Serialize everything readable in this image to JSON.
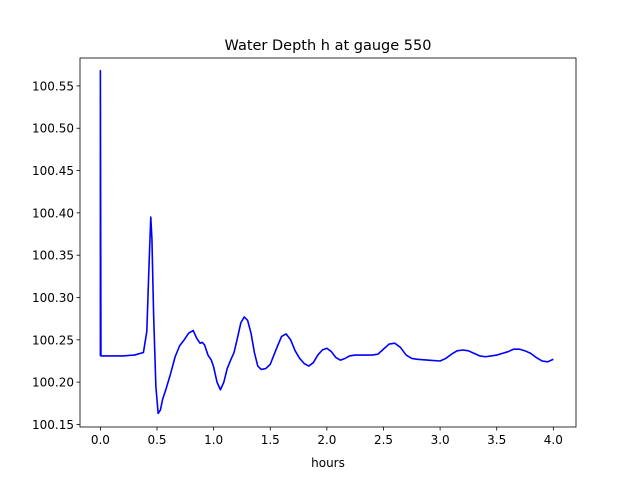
{
  "chart_data": {
    "type": "line",
    "title": "Water Depth h at gauge 550",
    "xlabel": "hours",
    "ylabel": "",
    "xlim": [
      -0.18,
      4.2
    ],
    "ylim": [
      100.147,
      100.583
    ],
    "grid": false,
    "xticks": [
      0.0,
      0.5,
      1.0,
      1.5,
      2.0,
      2.5,
      3.0,
      3.5,
      4.0
    ],
    "xtick_labels": [
      "0.0",
      "0.5",
      "1.0",
      "1.5",
      "2.0",
      "2.5",
      "3.0",
      "3.5",
      "4.0"
    ],
    "yticks": [
      100.15,
      100.2,
      100.25,
      100.3,
      100.35,
      100.4,
      100.45,
      100.5,
      100.55
    ],
    "ytick_labels": [
      "100.15",
      "100.20",
      "100.25",
      "100.30",
      "100.35",
      "100.40",
      "100.45",
      "100.50",
      "100.55"
    ],
    "series": [
      {
        "color": "#0000ff",
        "x": [
          0.0,
          0.0,
          0.005,
          0.1,
          0.2,
          0.3,
          0.38,
          0.41,
          0.43,
          0.445,
          0.455,
          0.47,
          0.49,
          0.51,
          0.53,
          0.55,
          0.58,
          0.62,
          0.66,
          0.7,
          0.74,
          0.78,
          0.82,
          0.85,
          0.88,
          0.9,
          0.92,
          0.95,
          0.98,
          1.0,
          1.03,
          1.06,
          1.09,
          1.12,
          1.15,
          1.18,
          1.21,
          1.24,
          1.27,
          1.3,
          1.33,
          1.36,
          1.39,
          1.42,
          1.46,
          1.5,
          1.55,
          1.6,
          1.64,
          1.68,
          1.72,
          1.76,
          1.8,
          1.84,
          1.88,
          1.92,
          1.96,
          2.0,
          2.04,
          2.08,
          2.12,
          2.16,
          2.2,
          2.25,
          2.3,
          2.35,
          2.4,
          2.45,
          2.5,
          2.55,
          2.6,
          2.65,
          2.7,
          2.75,
          2.8,
          2.9,
          3.0,
          3.05,
          3.1,
          3.15,
          3.2,
          3.25,
          3.3,
          3.35,
          3.4,
          3.45,
          3.5,
          3.55,
          3.6,
          3.65,
          3.7,
          3.75,
          3.8,
          3.85,
          3.9,
          3.95,
          4.0
        ],
        "y": [
          100.231,
          100.568,
          100.231,
          100.231,
          100.231,
          100.232,
          100.235,
          100.26,
          100.34,
          100.395,
          100.37,
          100.28,
          100.195,
          100.163,
          100.167,
          100.18,
          100.192,
          100.21,
          100.23,
          100.243,
          100.25,
          100.258,
          100.261,
          100.252,
          100.246,
          100.247,
          100.244,
          100.232,
          100.226,
          100.218,
          100.2,
          100.191,
          100.2,
          100.216,
          100.226,
          100.235,
          100.252,
          100.27,
          100.277,
          100.273,
          100.258,
          100.235,
          100.219,
          100.215,
          100.216,
          100.221,
          100.238,
          100.254,
          100.257,
          100.25,
          100.237,
          100.228,
          100.222,
          100.219,
          100.223,
          100.232,
          100.238,
          100.24,
          100.236,
          100.229,
          100.226,
          100.228,
          100.231,
          100.232,
          100.232,
          100.232,
          100.232,
          100.233,
          100.239,
          100.245,
          100.246,
          100.241,
          100.232,
          100.228,
          100.227,
          100.226,
          100.225,
          100.228,
          100.233,
          100.237,
          100.238,
          100.237,
          100.234,
          100.231,
          100.23,
          100.231,
          100.232,
          100.234,
          100.236,
          100.239,
          100.239,
          100.237,
          100.234,
          100.229,
          100.225,
          100.224,
          100.227
        ]
      }
    ]
  }
}
